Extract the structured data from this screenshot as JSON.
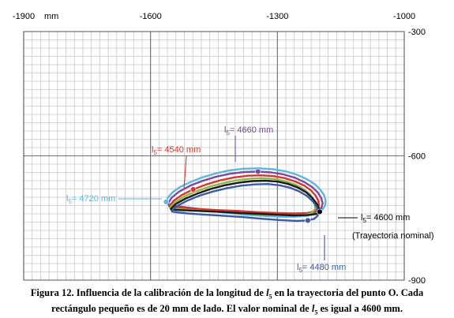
{
  "chart_data": {
    "type": "line",
    "x_unit": "mm",
    "xlim": [
      -1900,
      -1000
    ],
    "ylim": [
      -900,
      -300
    ],
    "x_ticks": [
      -1900,
      -1600,
      -1300,
      -1000
    ],
    "y_ticks": [
      -300,
      -600,
      -900
    ],
    "x_tick_labels": [
      "-1900",
      "-1600",
      "-1300",
      "-1000"
    ],
    "y_tick_labels": [
      "-300",
      "-600",
      "-900"
    ],
    "minor_grid_step": 20,
    "grid": true,
    "series": [
      {
        "name": "l5= 4720 mm",
        "label_parts": [
          "l",
          "5",
          "= 4720 mm"
        ],
        "color": "#5bb6e0",
        "points": [
          [
            -1563,
            -711
          ],
          [
            -1560,
            -702
          ],
          [
            -1548,
            -688
          ],
          [
            -1530,
            -675
          ],
          [
            -1505,
            -663
          ],
          [
            -1478,
            -652
          ],
          [
            -1448,
            -643
          ],
          [
            -1414,
            -635
          ],
          [
            -1380,
            -631
          ],
          [
            -1345,
            -630
          ],
          [
            -1312,
            -632
          ],
          [
            -1282,
            -637
          ],
          [
            -1255,
            -645
          ],
          [
            -1231,
            -656
          ],
          [
            -1212,
            -668
          ],
          [
            -1199,
            -681
          ],
          [
            -1190,
            -694
          ],
          [
            -1186,
            -707
          ],
          [
            -1187,
            -719
          ],
          [
            -1192,
            -728
          ],
          [
            -1202,
            -736
          ],
          [
            -1215,
            -741
          ],
          [
            -1232,
            -745
          ],
          [
            -1260,
            -747
          ],
          [
            -1295,
            -747
          ],
          [
            -1335,
            -745
          ],
          [
            -1380,
            -742
          ],
          [
            -1425,
            -737
          ],
          [
            -1468,
            -732
          ],
          [
            -1508,
            -726
          ],
          [
            -1540,
            -721
          ],
          [
            -1557,
            -717
          ],
          [
            -1563,
            -711
          ]
        ]
      },
      {
        "name": "l5= 4660 mm",
        "label_parts": [
          "l",
          "5",
          "= 4660 mm"
        ],
        "color": "#7a4aa0",
        "points": [
          [
            -1560,
            -717
          ],
          [
            -1550,
            -701
          ],
          [
            -1532,
            -686
          ],
          [
            -1506,
            -672
          ],
          [
            -1476,
            -660
          ],
          [
            -1444,
            -650
          ],
          [
            -1411,
            -643
          ],
          [
            -1378,
            -639
          ],
          [
            -1346,
            -638
          ],
          [
            -1314,
            -640
          ],
          [
            -1285,
            -645
          ],
          [
            -1258,
            -653
          ],
          [
            -1235,
            -664
          ],
          [
            -1217,
            -676
          ],
          [
            -1204,
            -689
          ],
          [
            -1196,
            -702
          ],
          [
            -1193,
            -715
          ],
          [
            -1196,
            -726
          ],
          [
            -1207,
            -734
          ],
          [
            -1226,
            -739
          ],
          [
            -1255,
            -741
          ],
          [
            -1295,
            -741
          ],
          [
            -1340,
            -740
          ],
          [
            -1385,
            -738
          ],
          [
            -1432,
            -734
          ],
          [
            -1478,
            -729
          ],
          [
            -1520,
            -724
          ],
          [
            -1550,
            -720
          ],
          [
            -1560,
            -717
          ]
        ]
      },
      {
        "name": "l5= 4540 mm",
        "label_parts": [
          "l",
          "5",
          "= 4540 mm"
        ],
        "color": "#d9352a",
        "points": [
          [
            -1557,
            -723
          ],
          [
            -1545,
            -708
          ],
          [
            -1525,
            -694
          ],
          [
            -1499,
            -681
          ],
          [
            -1468,
            -669
          ],
          [
            -1435,
            -659
          ],
          [
            -1402,
            -652
          ],
          [
            -1370,
            -648
          ],
          [
            -1339,
            -647
          ],
          [
            -1309,
            -649
          ],
          [
            -1282,
            -654
          ],
          [
            -1257,
            -662
          ],
          [
            -1236,
            -672
          ],
          [
            -1220,
            -684
          ],
          [
            -1209,
            -697
          ],
          [
            -1203,
            -709
          ],
          [
            -1202,
            -720
          ],
          [
            -1206,
            -729
          ],
          [
            -1215,
            -735
          ],
          [
            -1230,
            -738
          ],
          [
            -1262,
            -739
          ],
          [
            -1300,
            -738
          ],
          [
            -1345,
            -736
          ],
          [
            -1392,
            -733
          ],
          [
            -1440,
            -731
          ],
          [
            -1490,
            -728
          ],
          [
            -1530,
            -725
          ],
          [
            -1552,
            -724
          ],
          [
            -1557,
            -723
          ]
        ]
      },
      {
        "name": "",
        "color": "#8fb44a",
        "points": [
          [
            -1555,
            -726
          ],
          [
            -1542,
            -712
          ],
          [
            -1520,
            -698
          ],
          [
            -1493,
            -686
          ],
          [
            -1462,
            -675
          ],
          [
            -1429,
            -666
          ],
          [
            -1396,
            -659
          ],
          [
            -1364,
            -655
          ],
          [
            -1334,
            -654
          ],
          [
            -1305,
            -656
          ],
          [
            -1279,
            -662
          ],
          [
            -1256,
            -670
          ],
          [
            -1237,
            -681
          ],
          [
            -1223,
            -693
          ],
          [
            -1214,
            -706
          ],
          [
            -1210,
            -718
          ],
          [
            -1211,
            -729
          ],
          [
            -1218,
            -737
          ],
          [
            -1232,
            -742
          ],
          [
            -1260,
            -744
          ],
          [
            -1300,
            -743
          ],
          [
            -1345,
            -741
          ],
          [
            -1390,
            -738
          ],
          [
            -1438,
            -735
          ],
          [
            -1485,
            -732
          ],
          [
            -1528,
            -729
          ],
          [
            -1550,
            -727
          ],
          [
            -1555,
            -726
          ]
        ]
      },
      {
        "name": "l5= 4600 mm",
        "label_parts": [
          "l",
          "5",
          "= 4600 mm"
        ],
        "label_note": "(Trayectoria nominal)",
        "color": "#1a1a1a",
        "points": [
          [
            -1553,
            -729
          ],
          [
            -1540,
            -716
          ],
          [
            -1517,
            -703
          ],
          [
            -1489,
            -691
          ],
          [
            -1458,
            -680
          ],
          [
            -1425,
            -671
          ],
          [
            -1392,
            -665
          ],
          [
            -1360,
            -661
          ],
          [
            -1329,
            -660
          ],
          [
            -1300,
            -662
          ],
          [
            -1274,
            -668
          ],
          [
            -1251,
            -677
          ],
          [
            -1232,
            -688
          ],
          [
            -1218,
            -701
          ],
          [
            -1208,
            -714
          ],
          [
            -1202,
            -726
          ],
          [
            -1200,
            -735
          ],
          [
            -1206,
            -740
          ],
          [
            -1228,
            -743
          ],
          [
            -1262,
            -744
          ],
          [
            -1302,
            -742
          ],
          [
            -1345,
            -740
          ],
          [
            -1390,
            -738
          ],
          [
            -1438,
            -735
          ],
          [
            -1485,
            -733
          ],
          [
            -1528,
            -731
          ],
          [
            -1549,
            -730
          ],
          [
            -1553,
            -729
          ]
        ]
      },
      {
        "name": "l5= 4480 mm",
        "label_parts": [
          "l",
          "5",
          "= 4480 mm"
        ],
        "color": "#3a5aa8",
        "points": [
          [
            -1551,
            -734
          ],
          [
            -1537,
            -721
          ],
          [
            -1513,
            -708
          ],
          [
            -1484,
            -696
          ],
          [
            -1452,
            -686
          ],
          [
            -1419,
            -678
          ],
          [
            -1386,
            -672
          ],
          [
            -1354,
            -669
          ],
          [
            -1323,
            -668
          ],
          [
            -1295,
            -671
          ],
          [
            -1270,
            -677
          ],
          [
            -1248,
            -686
          ],
          [
            -1230,
            -697
          ],
          [
            -1216,
            -710
          ],
          [
            -1207,
            -723
          ],
          [
            -1203,
            -735
          ],
          [
            -1205,
            -745
          ],
          [
            -1213,
            -752
          ],
          [
            -1228,
            -756
          ],
          [
            -1255,
            -757
          ],
          [
            -1293,
            -755
          ],
          [
            -1335,
            -752
          ],
          [
            -1380,
            -748
          ],
          [
            -1425,
            -745
          ],
          [
            -1470,
            -742
          ],
          [
            -1512,
            -739
          ],
          [
            -1540,
            -736
          ],
          [
            -1551,
            -734
          ]
        ]
      }
    ],
    "markers": [
      {
        "series": 0,
        "x": -1563,
        "y": -711,
        "label_parts": [
          "l",
          "5",
          "= 4720 mm"
        ],
        "color": "#5bb6e0"
      },
      {
        "series": 1,
        "x": -1346,
        "y": -638,
        "label_parts": [
          "l",
          "5",
          "= 4660 mm"
        ],
        "color": "#7a4aa0"
      },
      {
        "series": 2,
        "x": -1499,
        "y": -681,
        "label_parts": [
          "l",
          "5",
          "= 4540 mm"
        ],
        "color": "#d9352a"
      },
      {
        "series": 4,
        "x": -1200,
        "y": -735,
        "label_parts": [
          "l",
          "5",
          "= 4600 mm"
        ],
        "color": "#000000"
      },
      {
        "series": 5,
        "x": -1228,
        "y": -756,
        "label_parts": [
          "l",
          "5",
          "= 4480 mm"
        ],
        "color": "#3a5aa8"
      }
    ],
    "annotation_note": "(Trayectoria nominal)"
  },
  "caption": {
    "line1": {
      "before": "Figura 12. Influencia de la calibración de la longitud de ",
      "var": "l",
      "sub": "5",
      "after": " en la trayectoria del punto O. Cada"
    },
    "line2": {
      "before": "rectángulo pequeño es de 20 mm de lado. El valor nominal de ",
      "var": "l",
      "sub": "5",
      "after": " es igual a 4600 mm."
    }
  }
}
